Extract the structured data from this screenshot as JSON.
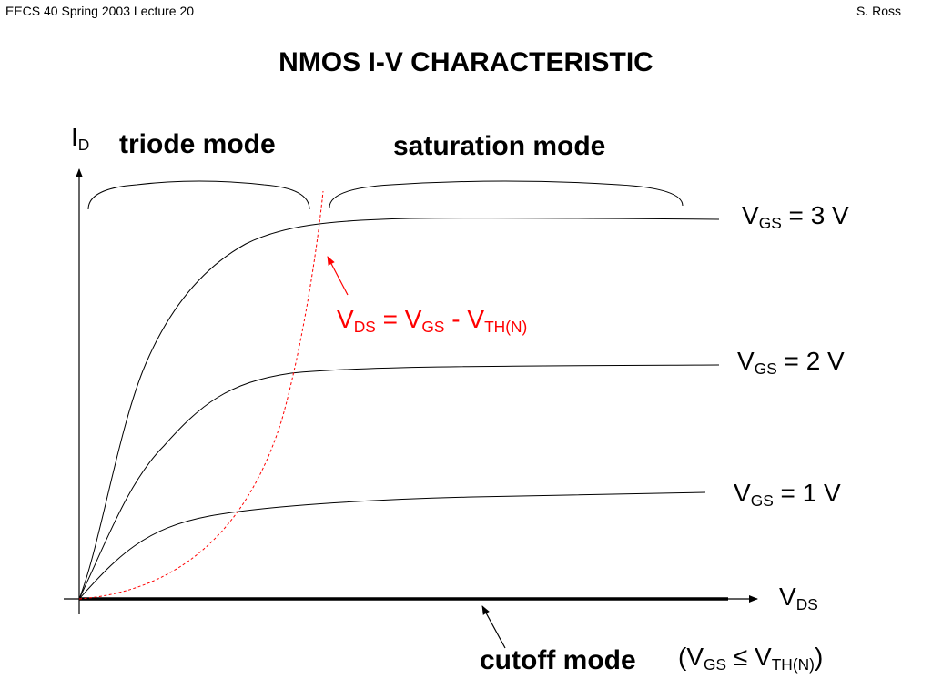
{
  "header": {
    "left": "EECS 40 Spring 2003  Lecture 20",
    "right": "S. Ross"
  },
  "title": "NMOS I-V CHARACTERISTIC",
  "axes": {
    "y_label_main": "I",
    "y_label_sub": "D",
    "x_label_main": "V",
    "x_label_sub": "DS"
  },
  "regions": {
    "triode": "triode mode",
    "saturation": "saturation mode",
    "cutoff": "cutoff mode"
  },
  "cutoff_condition": {
    "open": "(V",
    "gs_sub": "GS",
    "le": " ≤ V",
    "th_sub": "TH(N)",
    "close": ")"
  },
  "boundary": {
    "v1": "V",
    "ds_sub": "DS",
    "eq": " = V",
    "gs_sub": "GS",
    "minus": " - V",
    "th_sub": "TH(N)"
  },
  "curves": [
    {
      "v": "V",
      "sub": "GS",
      "rest": " = 3 V"
    },
    {
      "v": "V",
      "sub": "GS",
      "rest": " = 2 V"
    },
    {
      "v": "V",
      "sub": "GS",
      "rest": " = 1 V"
    }
  ],
  "colors": {
    "curve": "#000000",
    "boundary": "#ff0000"
  }
}
